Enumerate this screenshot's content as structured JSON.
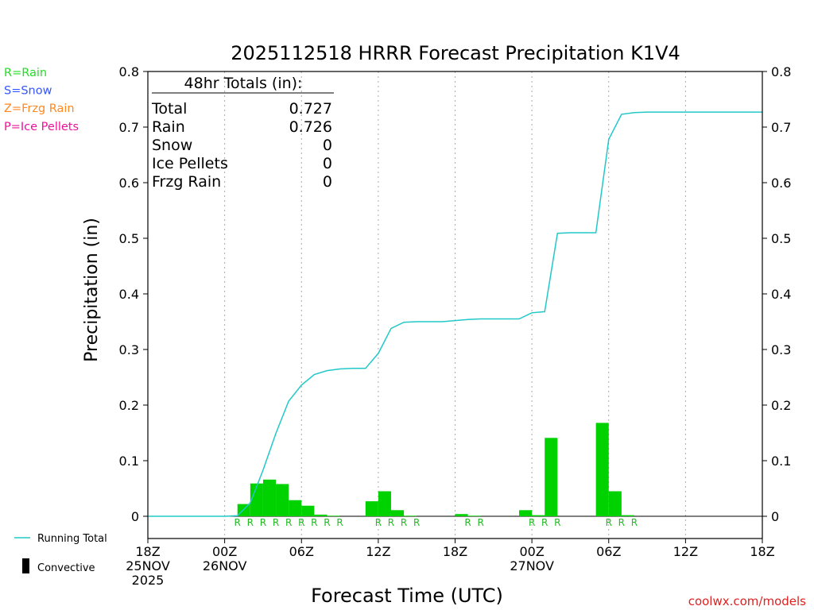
{
  "chart_data": {
    "type": "bar",
    "title": "2025112518 HRRR Forecast Precipitation K1V4",
    "xlabel": "Forecast Time (UTC)",
    "ylabel": "Precipitation (in)",
    "ylim": [
      0,
      0.8
    ],
    "y_ticks": [
      0,
      0.1,
      0.2,
      0.3,
      0.4,
      0.5,
      0.6,
      0.7,
      0.8
    ],
    "y_tick_labels": [
      "0",
      "0.1",
      "0.2",
      "0.3",
      "0.4",
      "0.5",
      "0.6",
      "0.7",
      "0.8"
    ],
    "x_range_hours": [
      0,
      48
    ],
    "x_ticks": [
      {
        "hour": 0,
        "lines": [
          "18Z",
          "25NOV",
          "2025"
        ]
      },
      {
        "hour": 6,
        "lines": [
          "00Z",
          "26NOV"
        ]
      },
      {
        "hour": 12,
        "lines": [
          "06Z"
        ]
      },
      {
        "hour": 18,
        "lines": [
          "12Z"
        ]
      },
      {
        "hour": 24,
        "lines": [
          "18Z"
        ]
      },
      {
        "hour": 30,
        "lines": [
          "00Z",
          "27NOV"
        ]
      },
      {
        "hour": 36,
        "lines": [
          "06Z"
        ]
      },
      {
        "hour": 42,
        "lines": [
          "12Z"
        ]
      },
      {
        "hour": 48,
        "lines": [
          "18Z"
        ]
      }
    ],
    "grid_hours": [
      6,
      12,
      18,
      24,
      30,
      36,
      42
    ],
    "bars": [
      {
        "hour": 8,
        "value": 0.022,
        "type": "R"
      },
      {
        "hour": 9,
        "value": 0.059,
        "type": "R"
      },
      {
        "hour": 10,
        "value": 0.066,
        "type": "R"
      },
      {
        "hour": 11,
        "value": 0.058,
        "type": "R"
      },
      {
        "hour": 12,
        "value": 0.029,
        "type": "R"
      },
      {
        "hour": 13,
        "value": 0.019,
        "type": "R"
      },
      {
        "hour": 14,
        "value": 0.003,
        "type": "R"
      },
      {
        "hour": 15,
        "value": 0.001,
        "type": "R"
      },
      {
        "hour": 18,
        "value": 0.027,
        "type": "R"
      },
      {
        "hour": 19,
        "value": 0.045,
        "type": "R"
      },
      {
        "hour": 20,
        "value": 0.011,
        "type": "R"
      },
      {
        "hour": 21,
        "value": 0.001,
        "type": "R"
      },
      {
        "hour": 25,
        "value": 0.004,
        "type": "R"
      },
      {
        "hour": 26,
        "value": 0.001,
        "type": "R"
      },
      {
        "hour": 30,
        "value": 0.011,
        "type": "R"
      },
      {
        "hour": 31,
        "value": 0.002,
        "type": "R"
      },
      {
        "hour": 32,
        "value": 0.141,
        "type": "R"
      },
      {
        "hour": 36,
        "value": 0.168,
        "type": "R"
      },
      {
        "hour": 37,
        "value": 0.045,
        "type": "R"
      },
      {
        "hour": 38,
        "value": 0.002,
        "type": "R"
      }
    ],
    "rain_markers": [
      {
        "hour": 7.5,
        "label": "R"
      },
      {
        "hour": 8.5,
        "label": "R"
      },
      {
        "hour": 9.5,
        "label": "R"
      },
      {
        "hour": 10.5,
        "label": "R"
      },
      {
        "hour": 11.5,
        "label": "R"
      },
      {
        "hour": 12.5,
        "label": "R"
      },
      {
        "hour": 13.5,
        "label": "R"
      },
      {
        "hour": 14.5,
        "label": "R"
      },
      {
        "hour": 15.5,
        "label": "R"
      },
      {
        "hour": 18.5,
        "label": "R"
      },
      {
        "hour": 19.5,
        "label": "R"
      },
      {
        "hour": 20.5,
        "label": "R"
      },
      {
        "hour": 21.5,
        "label": "R"
      },
      {
        "hour": 25.5,
        "label": "R"
      },
      {
        "hour": 26.5,
        "label": "R"
      },
      {
        "hour": 30.5,
        "label": "R"
      },
      {
        "hour": 31.5,
        "label": "R"
      },
      {
        "hour": 32.5,
        "label": "R"
      },
      {
        "hour": 36.5,
        "label": "R"
      },
      {
        "hour": 37.5,
        "label": "R"
      },
      {
        "hour": 38.5,
        "label": "R"
      }
    ],
    "running_total": {
      "x": [
        0,
        1,
        2,
        3,
        4,
        5,
        6,
        7,
        8,
        9,
        10,
        11,
        12,
        13,
        14,
        15,
        16,
        17,
        18,
        19,
        20,
        21,
        22,
        23,
        24,
        25,
        26,
        27,
        28,
        29,
        30,
        31,
        32,
        33,
        34,
        35,
        36,
        37,
        38,
        39,
        40,
        41,
        42,
        43,
        44,
        45,
        46,
        47,
        48
      ],
      "y": [
        0,
        0,
        0,
        0,
        0,
        0,
        0,
        0.001,
        0.024,
        0.083,
        0.149,
        0.207,
        0.236,
        0.255,
        0.262,
        0.265,
        0.266,
        0.266,
        0.293,
        0.338,
        0.349,
        0.35,
        0.35,
        0.35,
        0.352,
        0.354,
        0.355,
        0.355,
        0.355,
        0.355,
        0.366,
        0.368,
        0.509,
        0.51,
        0.51,
        0.51,
        0.678,
        0.723,
        0.726,
        0.727,
        0.727,
        0.727,
        0.727,
        0.727,
        0.727,
        0.727,
        0.727,
        0.727,
        0.727
      ]
    },
    "colors": {
      "rain_bar": "#00d200",
      "running_total": "#22c8c8",
      "grid": "#aaaaaa",
      "axis": "#000000"
    },
    "totals_box": {
      "header": "48hr Totals (in):",
      "rows": [
        {
          "label": "Total",
          "value": "0.727"
        },
        {
          "label": "Rain",
          "value": "0.726"
        },
        {
          "label": "Snow",
          "value": "0"
        },
        {
          "label": "Ice Pellets",
          "value": "0"
        },
        {
          "label": "Frzg Rain",
          "value": "0"
        }
      ]
    },
    "legend_types": [
      {
        "text": "R=Rain",
        "color": "#22dd22"
      },
      {
        "text": "S=Snow",
        "color": "#3355ff"
      },
      {
        "text": "Z=Frzg Rain",
        "color": "#ff8822"
      },
      {
        "text": "P=Ice Pellets",
        "color": "#ee1199"
      }
    ],
    "legend_series": [
      {
        "text": "Running Total",
        "symbol": "line"
      },
      {
        "text": "Convective",
        "symbol": "bar"
      }
    ]
  },
  "credit": "coolwx.com/models"
}
